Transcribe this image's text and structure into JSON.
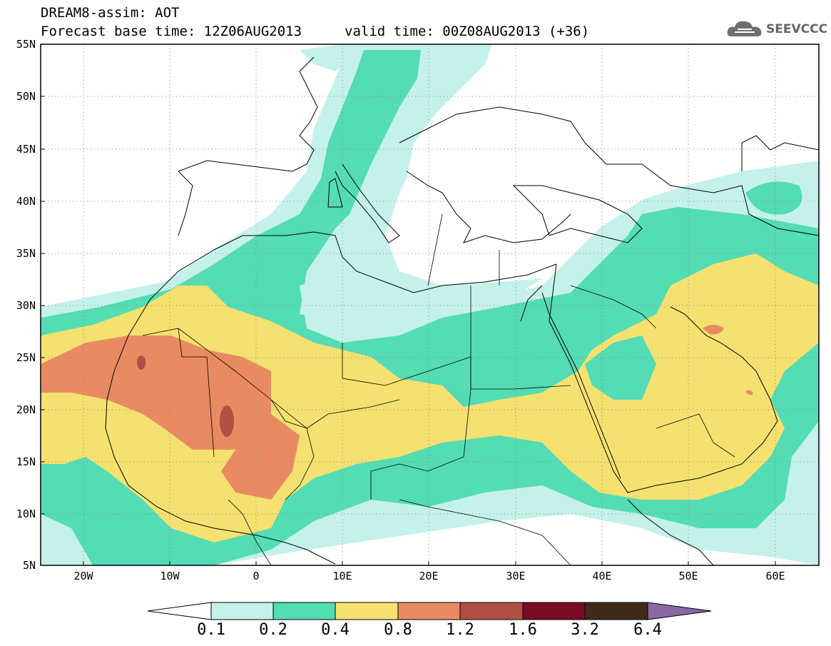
{
  "title": {
    "line1": "DREAM8-assim: AOT",
    "line2": "Forecast base time: 12Z06AUG2013",
    "valid": "valid time: 00Z08AUG2013 (+36)"
  },
  "logo": {
    "text": "SEEVCCC",
    "icon": "cloud-icon"
  },
  "axes": {
    "lat_labels": [
      "55N",
      "50N",
      "45N",
      "40N",
      "35N",
      "30N",
      "25N",
      "20N",
      "15N",
      "10N",
      "5N"
    ],
    "lon_labels": [
      "20W",
      "10W",
      "0",
      "10E",
      "20E",
      "30E",
      "40E",
      "50E",
      "60E"
    ]
  },
  "colorbar": {
    "levels": [
      "0.1",
      "0.2",
      "0.4",
      "0.8",
      "1.2",
      "1.6",
      "3.2",
      "6.4"
    ],
    "colors": [
      "#ffffff",
      "#c4f2ea",
      "#54dcb4",
      "#f5e170",
      "#e98b62",
      "#b04f42",
      "#7c0b26",
      "#3e2b1a",
      "#8b67a8"
    ]
  },
  "map": {
    "variable": "AOT",
    "lat_range": [
      5,
      55
    ],
    "lon_range": [
      -25,
      65
    ]
  }
}
